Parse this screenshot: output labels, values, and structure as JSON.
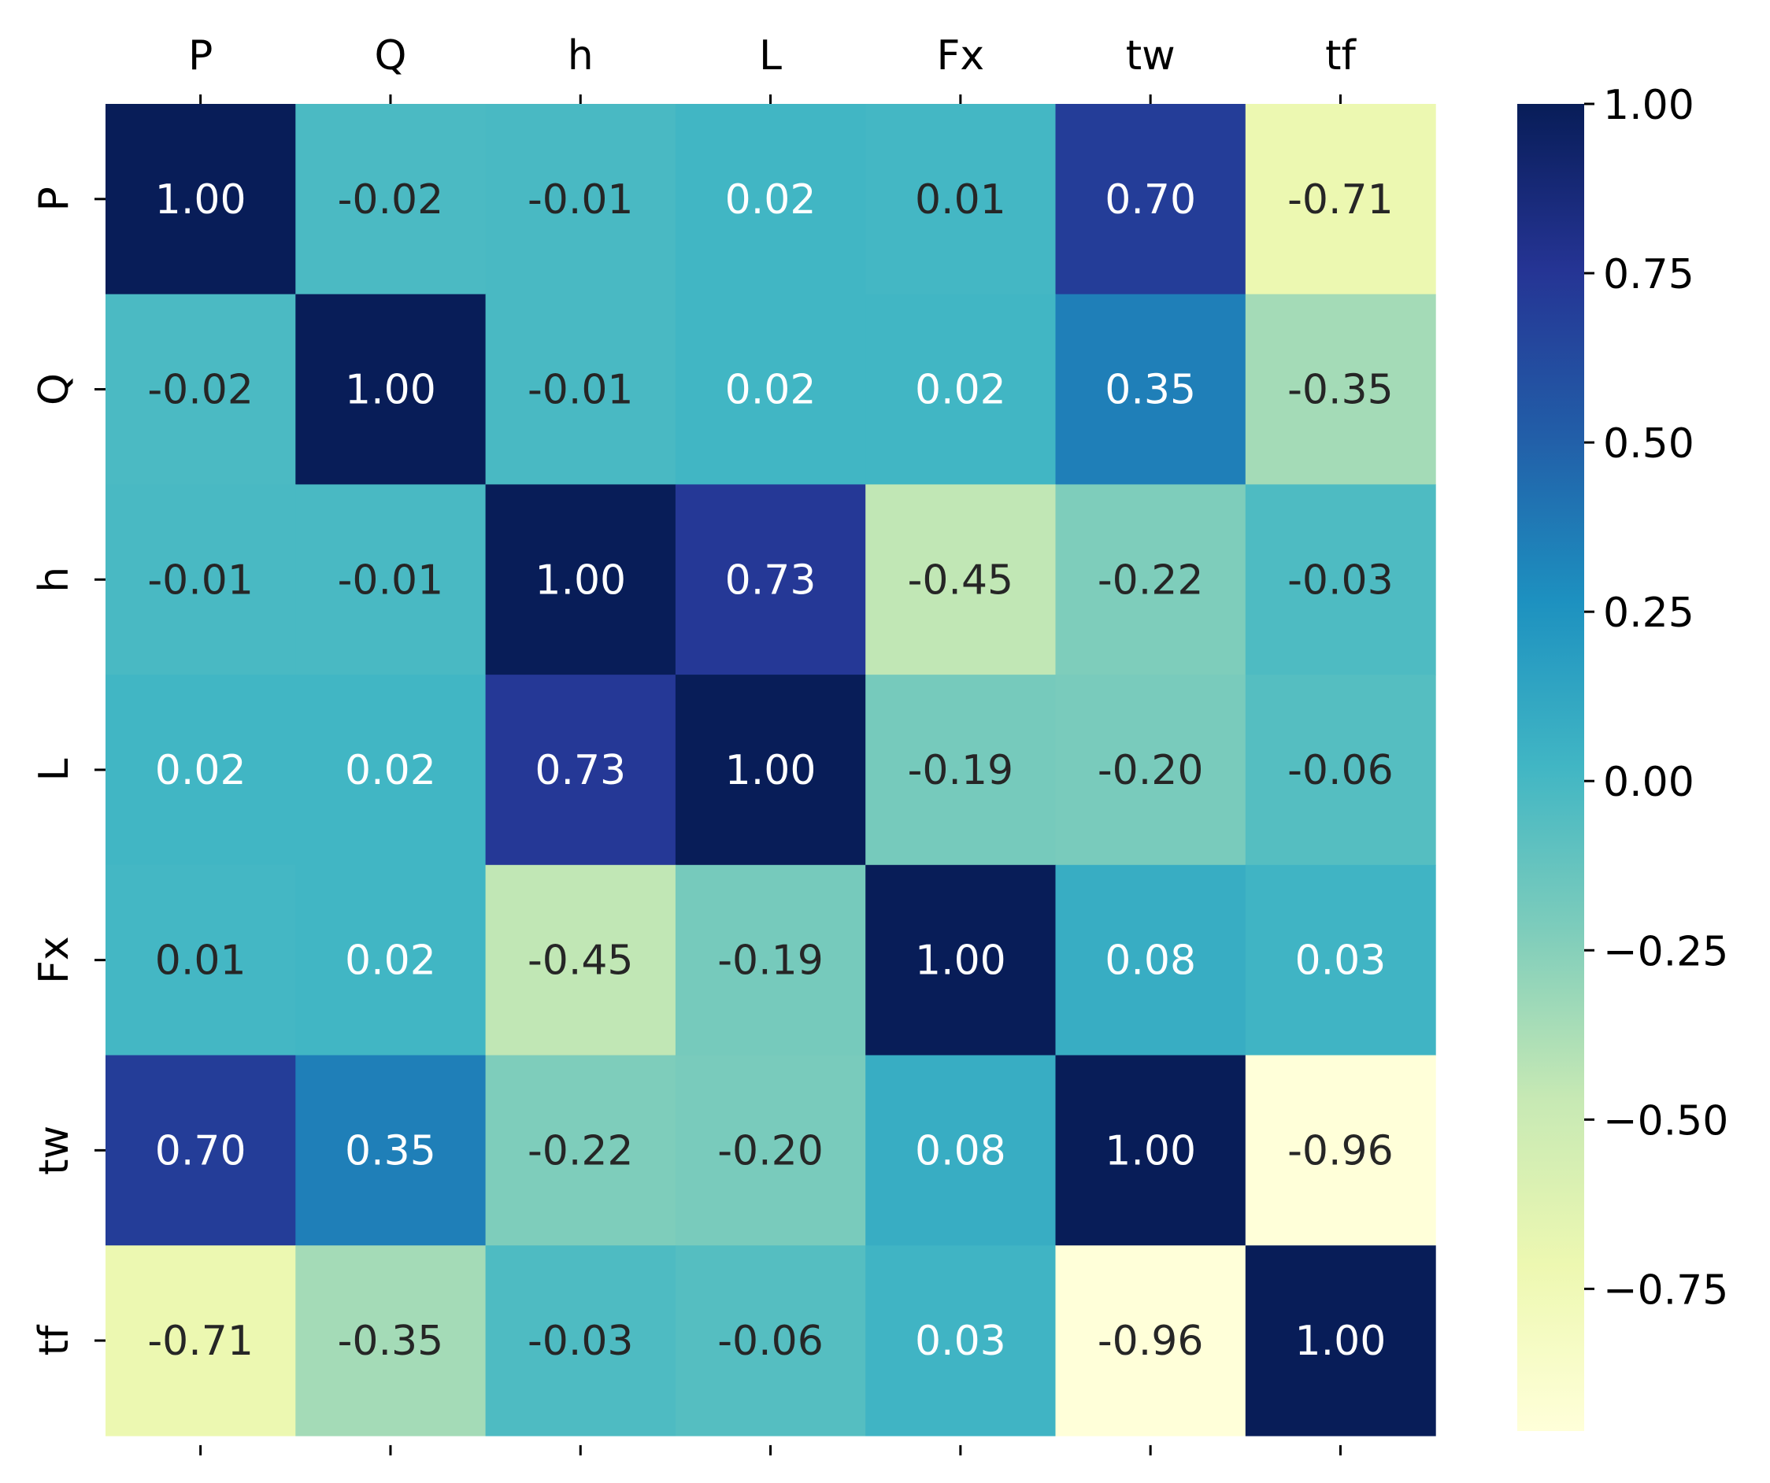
{
  "chart_data": {
    "type": "heatmap",
    "title": "",
    "xlabel": "",
    "ylabel": "",
    "colormap": "YlGnBu",
    "x_categories": [
      "P",
      "Q",
      "h",
      "L",
      "Fx",
      "tw",
      "tf"
    ],
    "y_categories": [
      "P",
      "Q",
      "h",
      "L",
      "Fx",
      "tw",
      "tf"
    ],
    "x_tick_position": "top",
    "values": [
      [
        1.0,
        -0.02,
        -0.01,
        0.02,
        0.01,
        0.7,
        -0.71
      ],
      [
        -0.02,
        1.0,
        -0.01,
        0.02,
        0.02,
        0.35,
        -0.35
      ],
      [
        -0.01,
        -0.01,
        1.0,
        0.73,
        -0.45,
        -0.22,
        -0.03
      ],
      [
        0.02,
        0.02,
        0.73,
        1.0,
        -0.19,
        -0.2,
        -0.06
      ],
      [
        0.01,
        0.02,
        -0.45,
        -0.19,
        1.0,
        0.08,
        0.03
      ],
      [
        0.7,
        0.35,
        -0.22,
        -0.2,
        0.08,
        1.0,
        -0.96
      ],
      [
        -0.71,
        -0.35,
        -0.03,
        -0.06,
        0.03,
        -0.96,
        1.0
      ]
    ],
    "annotations": [
      [
        "1.00",
        "-0.02",
        "-0.01",
        "0.02",
        "0.01",
        "0.70",
        "-0.71"
      ],
      [
        "-0.02",
        "1.00",
        "-0.01",
        "0.02",
        "0.02",
        "0.35",
        "-0.35"
      ],
      [
        "-0.01",
        "-0.01",
        "1.00",
        "0.73",
        "-0.45",
        "-0.22",
        "-0.03"
      ],
      [
        "0.02",
        "0.02",
        "0.73",
        "1.00",
        "-0.19",
        "-0.20",
        "-0.06"
      ],
      [
        "0.01",
        "0.02",
        "-0.45",
        "-0.19",
        "1.00",
        "0.08",
        "0.03"
      ],
      [
        "0.70",
        "0.35",
        "-0.22",
        "-0.20",
        "0.08",
        "1.00",
        "-0.96"
      ],
      [
        "-0.71",
        "-0.35",
        "-0.03",
        "-0.06",
        "0.03",
        "-0.96",
        "1.00"
      ]
    ],
    "vmin": -0.96,
    "vmax": 1.0,
    "colorbar": {
      "ticks": [
        1.0,
        0.75,
        0.5,
        0.25,
        0.0,
        -0.25,
        -0.5,
        -0.75
      ],
      "tick_labels": [
        "1.00",
        "0.75",
        "0.50",
        "0.25",
        "0.00",
        "−0.25",
        "−0.50",
        "−0.75"
      ]
    },
    "colors": {
      "colormap_stops": [
        "#ffffd9",
        "#edf8b1",
        "#c7e9b4",
        "#7fcdbb",
        "#41b6c4",
        "#1d91c0",
        "#225ea8",
        "#253494",
        "#081d58"
      ],
      "text_light": "#ffffff",
      "text_dark": "#262626",
      "axis": "#000000"
    }
  }
}
